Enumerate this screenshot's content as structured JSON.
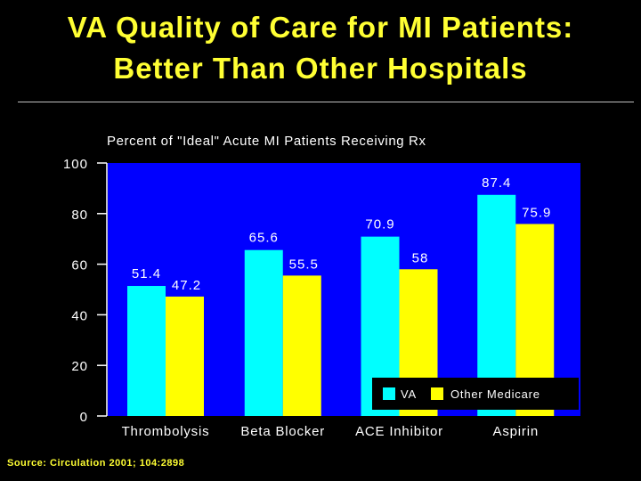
{
  "slide": {
    "title_line1": "VA Quality of Care for MI Patients:",
    "title_line2": "Better Than Other Hospitals",
    "source": "Source: Circulation 2001; 104:2898"
  },
  "colors": {
    "background": "#000000",
    "plot_background": "#0000ff",
    "title_text": "#ffff33",
    "va": "#00ffff",
    "other_medicare": "#ffff00",
    "legend_box": "#000000"
  },
  "chart_data": {
    "type": "bar",
    "title": "Percent of \"Ideal\" Acute MI Patients Receiving Rx",
    "xlabel": "",
    "ylabel": "",
    "ylim": [
      0,
      100
    ],
    "yticks": [
      0,
      20,
      40,
      60,
      80,
      100
    ],
    "ytick_labels": [
      "0",
      "20",
      "40",
      "60",
      "80",
      "100"
    ],
    "grid": false,
    "legend_position": "bottom-right",
    "categories": [
      "Thrombolysis",
      "Beta Blocker",
      "ACE Inhibitor",
      "Aspirin"
    ],
    "series": [
      {
        "name": "VA",
        "values": [
          51.4,
          65.6,
          70.9,
          87.4
        ],
        "labels": [
          "51.4",
          "65.6",
          "70.9",
          "87.4"
        ]
      },
      {
        "name": "Other Medicare",
        "values": [
          47.2,
          55.5,
          58,
          75.9
        ],
        "labels": [
          "47.2",
          "55.5",
          "58",
          "75.9"
        ]
      }
    ]
  }
}
